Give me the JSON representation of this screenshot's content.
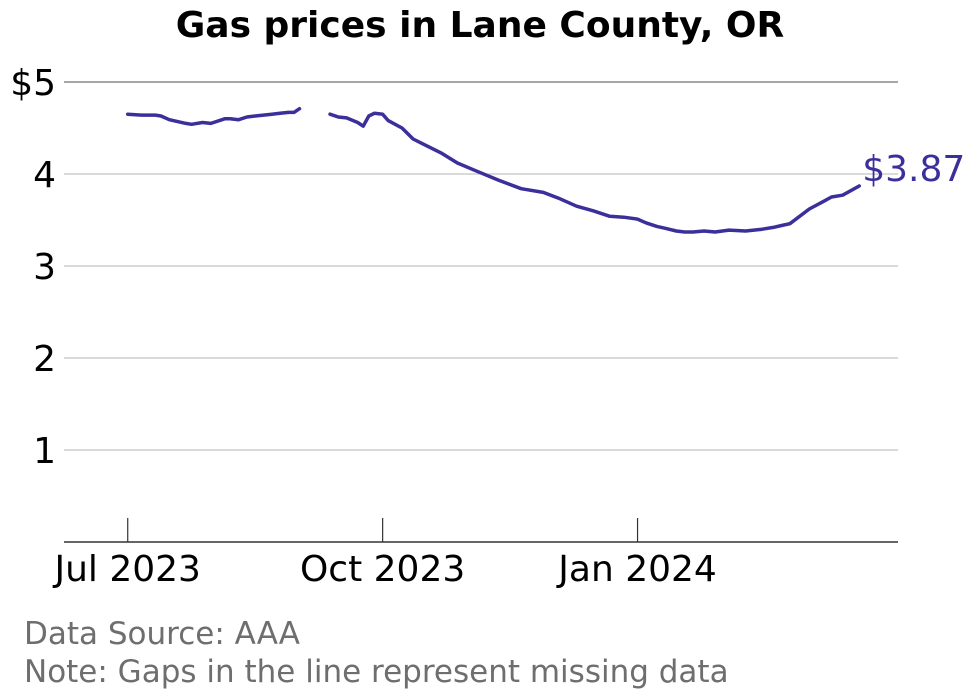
{
  "chart_data": {
    "type": "line",
    "title": "Gas prices in Lane County, OR",
    "xlabel": "",
    "ylabel": "",
    "ylim": [
      0,
      5
    ],
    "xlim": [
      "2023-06-08",
      "2024-04-04"
    ],
    "y_ticks": [
      {
        "value": 5,
        "label": "$5"
      },
      {
        "value": 4,
        "label": "4"
      },
      {
        "value": 3,
        "label": "3"
      },
      {
        "value": 2,
        "label": "2"
      },
      {
        "value": 1,
        "label": "1"
      }
    ],
    "x_ticks": [
      {
        "value": "2023-07-01",
        "label": "Jul 2023"
      },
      {
        "value": "2023-10-01",
        "label": "Oct 2023"
      },
      {
        "value": "2024-01-01",
        "label": "Jan 2024"
      }
    ],
    "grid": true,
    "line_color": "#3b309b",
    "end_label": "$3.87",
    "segments": [
      {
        "x": [
          "2023-07-01",
          "2023-07-06",
          "2023-07-11",
          "2023-07-13",
          "2023-07-16",
          "2023-07-19",
          "2023-07-22",
          "2023-07-24",
          "2023-07-28",
          "2023-07-31",
          "2023-08-05",
          "2023-08-07",
          "2023-08-10",
          "2023-08-13",
          "2023-08-16",
          "2023-08-19",
          "2023-08-22",
          "2023-08-25",
          "2023-08-28",
          "2023-08-30",
          "2023-09-01"
        ],
        "y": [
          4.65,
          4.64,
          4.64,
          4.63,
          4.59,
          4.57,
          4.55,
          4.54,
          4.56,
          4.55,
          4.6,
          4.6,
          4.59,
          4.62,
          4.63,
          4.64,
          4.65,
          4.66,
          4.67,
          4.67,
          4.71
        ]
      },
      {
        "x": [
          "2023-09-12",
          "2023-09-15",
          "2023-09-18",
          "2023-09-22",
          "2023-09-24",
          "2023-09-26",
          "2023-09-28",
          "2023-10-01",
          "2023-10-03",
          "2023-10-08",
          "2023-10-12",
          "2023-10-16",
          "2023-10-22",
          "2023-10-28",
          "2023-11-04",
          "2023-11-12",
          "2023-11-20",
          "2023-11-28",
          "2023-12-04",
          "2023-12-10",
          "2023-12-16",
          "2023-12-22",
          "2023-12-27",
          "2024-01-01",
          "2024-01-04",
          "2024-01-08",
          "2024-01-11",
          "2024-01-15",
          "2024-01-18",
          "2024-01-21",
          "2024-01-25",
          "2024-01-29",
          "2024-02-03",
          "2024-02-09",
          "2024-02-15",
          "2024-02-19",
          "2024-02-22",
          "2024-02-25",
          "2024-03-03",
          "2024-03-08",
          "2024-03-11",
          "2024-03-15",
          "2024-03-21"
        ],
        "y": [
          4.65,
          4.62,
          4.61,
          4.56,
          4.52,
          4.63,
          4.66,
          4.65,
          4.58,
          4.5,
          4.38,
          4.32,
          4.23,
          4.12,
          4.03,
          3.93,
          3.84,
          3.8,
          3.73,
          3.65,
          3.6,
          3.54,
          3.53,
          3.51,
          3.47,
          3.43,
          3.41,
          3.38,
          3.37,
          3.37,
          3.38,
          3.37,
          3.39,
          3.38,
          3.4,
          3.42,
          3.44,
          3.46,
          3.62,
          3.7,
          3.75,
          3.77,
          3.87
        ]
      }
    ]
  },
  "footnotes": {
    "source": "Data Source: AAA",
    "note": "Note: Gaps in the line represent missing data"
  }
}
